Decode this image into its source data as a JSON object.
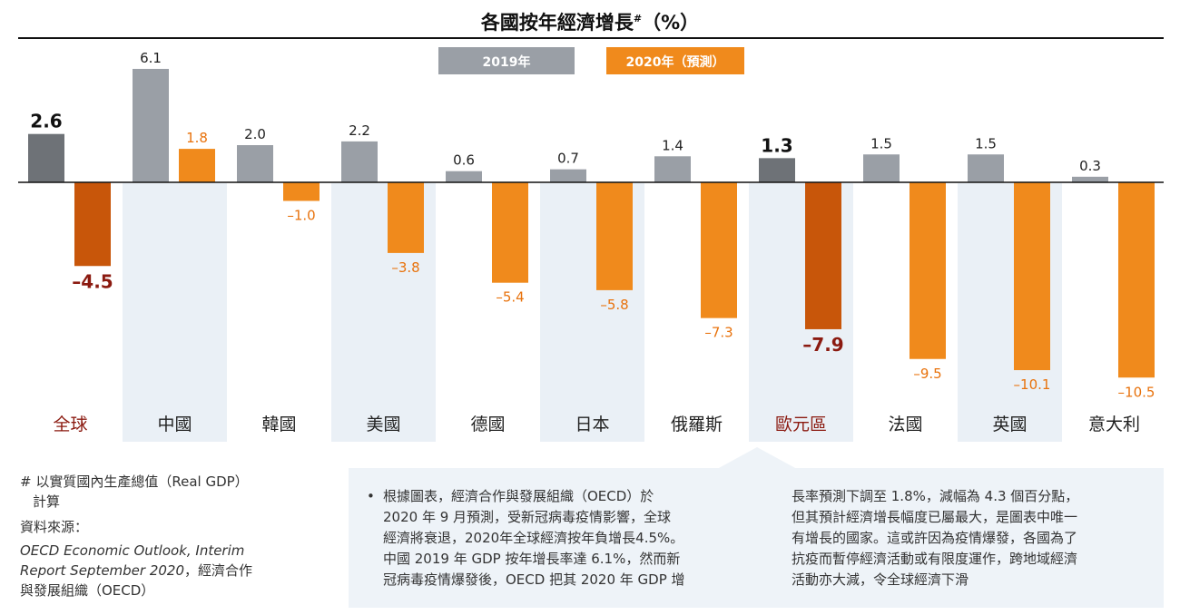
{
  "chart_data": {
    "type": "bar",
    "title": "各國按年經濟增長",
    "title_mark": "#",
    "title_unit": "（%）",
    "categories": [
      "全球",
      "中國",
      "韓國",
      "美國",
      "德國",
      "日本",
      "俄羅斯",
      "歐元區",
      "法國",
      "英國",
      "意大利"
    ],
    "highlight_categories": [
      "全球",
      "歐元區"
    ],
    "series": [
      {
        "name": "2019年",
        "values": [
          2.6,
          6.1,
          2.0,
          2.2,
          0.6,
          0.7,
          1.4,
          1.3,
          1.5,
          1.5,
          0.3
        ]
      },
      {
        "name": "2020年（預測）",
        "values": [
          -4.5,
          1.8,
          -1.0,
          -3.8,
          -5.4,
          -5.8,
          -7.3,
          -7.9,
          -9.5,
          -10.1,
          -10.5
        ]
      }
    ],
    "value_labels": {
      "2019": [
        "2.6",
        "6.1",
        "2.0",
        "2.2",
        "0.6",
        "0.7",
        "1.4",
        "1.3",
        "1.5",
        "1.5",
        "0.3"
      ],
      "2020": [
        "–4.5",
        "1.8",
        "–1.0",
        "–3.8",
        "–5.4",
        "–5.8",
        "–7.3",
        "–7.9",
        "–9.5",
        "–10.1",
        "–10.5"
      ]
    },
    "ylim": [
      -11,
      7
    ],
    "legend_position": "top-center",
    "colors": {
      "s2019": "#9a9fa6",
      "s2019_highlight": "#6e7277",
      "s2020": "#f08a1c",
      "s2020_highlight": "#c8560a",
      "label_2020": "#e8720c",
      "label_highlight": "#8b1a10",
      "band": "#eaf0f6",
      "category_text": "#222222"
    }
  },
  "footnote": {
    "line1": "# 以實質國內生產總值（Real GDP）",
    "line2": "計算",
    "source_label": "資料來源：",
    "source_title1": "OECD Economic Outlook, Interim",
    "source_title2_italic": "Report September 2020",
    "source_title2_rest": "，經濟合作",
    "source_line3": "與發展組織（OECD）"
  },
  "infobox": {
    "bullet": "•",
    "col1": [
      "根據圖表，經濟合作與發展組織（OECD）於",
      "2020 年 9 月預測，受新冠病毒疫情影響，全球",
      "經濟將衰退，2020年全球經濟按年負增長4.5%。",
      "中國 2019 年 GDP 按年增長率達 6.1%，然而新",
      "冠病毒疫情爆發後，OECD 把其 2020 年 GDP 增"
    ],
    "col2": [
      "長率預測下調至 1.8%，減幅為 4.3 個百分點，",
      "但其預計經濟增長幅度已屬最大，是圖表中唯一",
      "有增長的國家。這或許因為疫情爆發，各國為了",
      "抗疫而暫停經濟活動或有限度運作，跨地域經濟",
      "活動亦大減，令全球經濟下滑"
    ]
  }
}
